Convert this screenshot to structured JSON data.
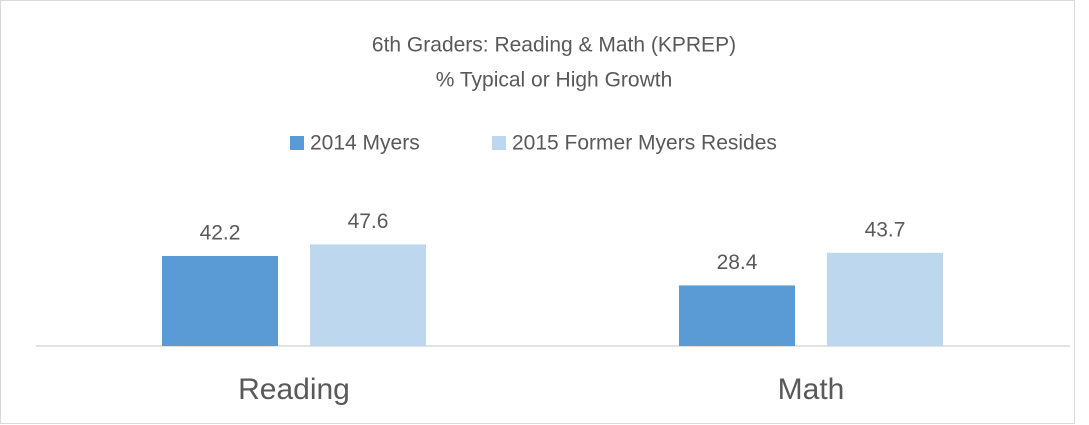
{
  "chart_data": {
    "type": "bar",
    "title": "6th Graders:  Reading & Math (KPREP)",
    "subtitle": "% Typical or High Growth",
    "categories": [
      "Reading",
      "Math"
    ],
    "series": [
      {
        "name": "2014 Myers",
        "color": "#5b9bd5",
        "values": [
          42.2,
          28.4
        ]
      },
      {
        "name": "2015 Former Myers Resides",
        "color": "#bdd7ee",
        "values": [
          47.6,
          43.7
        ]
      }
    ],
    "ylim": [
      0,
      60
    ],
    "legend": "top"
  }
}
